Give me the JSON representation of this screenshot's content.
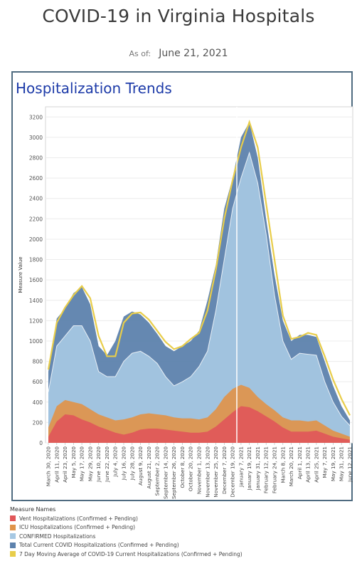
{
  "header": {
    "title": "COVID-19 in Virginia Hospitals",
    "as_of_label": "As of:",
    "as_of_date": "June 21, 2021"
  },
  "panel": {
    "title": "Hospitalization Trends"
  },
  "legend": {
    "title": "Measure Names",
    "items": [
      {
        "label": "Vent Hospitalizations (Confirmed + Pending)",
        "color": "#e15759"
      },
      {
        "label": "ICU Hospitalizations (Confirmed + Pending)",
        "color": "#e0944a"
      },
      {
        "label": "CONFIRMED Hospitalizations",
        "color": "#a6c8e3"
      },
      {
        "label": "Total Current COVID Hospitalizations (Confirmed + Pending)",
        "color": "#5d82ad"
      },
      {
        "label": "7 Day Moving Average of COVID-19 Current Hospitalizations (Confirmed + Pending)",
        "color": "#e8cd4a"
      }
    ]
  },
  "chart_data": {
    "type": "area",
    "ylabel": "Measure Value",
    "xlabel": "",
    "ylim": [
      0,
      3300
    ],
    "yticks": [
      0,
      200,
      400,
      600,
      800,
      1000,
      1200,
      1400,
      1600,
      1800,
      2000,
      2200,
      2400,
      2600,
      2800,
      3000,
      3200
    ],
    "x_tick_labels": [
      "March 30, 2020",
      "April 11, 2020",
      "April 23, 2020",
      "May 5, 2020",
      "May 17, 2020",
      "May 29, 2020",
      "June 10, 2020",
      "June 22, 2020",
      "July 4, 2020",
      "July 16, 2020",
      "July 28, 2020",
      "August 9, 2020",
      "August 21, 2020",
      "September 2, 2020",
      "September 14, 2020",
      "September 26, 2020",
      "October 8, 2020",
      "October 20, 2020",
      "November 1, 2020",
      "November 13, 2020",
      "November 25, 2020",
      "December 7, 2020",
      "December 19, 2020",
      "January 7, 2021",
      "January 19, 2021",
      "January 31, 2021",
      "February 12, 2021",
      "February 24, 2021",
      "March 8, 2021",
      "March 20, 2021",
      "April 1, 2021",
      "April 13, 2021",
      "April 25, 2021",
      "May 7, 2021",
      "May 19, 2021",
      "May 31, 2021",
      "June 12, 2021"
    ],
    "series": [
      {
        "name": "Vent Hospitalizations (Confirmed + Pending)",
        "values": [
          60,
          210,
          280,
          270,
          230,
          200,
          160,
          130,
          100,
          80,
          100,
          130,
          140,
          140,
          130,
          120,
          110,
          100,
          100,
          110,
          160,
          230,
          300,
          360,
          350,
          310,
          260,
          210,
          150,
          110,
          110,
          110,
          120,
          90,
          60,
          45,
          30
        ]
      },
      {
        "name": "ICU Hospitalizations (Confirmed + Pending)",
        "values": [
          150,
          360,
          420,
          400,
          380,
          330,
          280,
          250,
          220,
          230,
          250,
          280,
          290,
          280,
          270,
          250,
          240,
          240,
          230,
          250,
          330,
          450,
          530,
          570,
          540,
          450,
          380,
          320,
          250,
          220,
          220,
          210,
          220,
          170,
          120,
          90,
          60
        ]
      },
      {
        "name": "CONFIRMED Hospitalizations",
        "values": [
          500,
          950,
          1050,
          1150,
          1150,
          1000,
          700,
          650,
          650,
          800,
          880,
          900,
          850,
          780,
          650,
          560,
          600,
          650,
          750,
          900,
          1300,
          1800,
          2300,
          2600,
          2850,
          2550,
          2050,
          1450,
          1000,
          820,
          880,
          870,
          860,
          600,
          400,
          260,
          170
        ]
      },
      {
        "name": "Total Current COVID Hospitalizations (Confirmed + Pending)",
        "values": [
          700,
          1220,
          1320,
          1470,
          1530,
          1360,
          950,
          860,
          1000,
          1240,
          1290,
          1260,
          1180,
          1070,
          950,
          900,
          950,
          1000,
          1100,
          1400,
          1750,
          2300,
          2600,
          3000,
          3150,
          2800,
          2200,
          1650,
          1200,
          1000,
          1060,
          1060,
          1040,
          800,
          560,
          360,
          220
        ]
      },
      {
        "name": "7 Day Moving Average of COVID-19 Current Hospitalizations (Confirmed + Pending)",
        "values": [
          720,
          1180,
          1330,
          1450,
          1540,
          1420,
          1050,
          850,
          850,
          1180,
          1270,
          1280,
          1210,
          1100,
          990,
          920,
          950,
          1020,
          1080,
          1300,
          1700,
          2200,
          2580,
          2900,
          3150,
          2900,
          2350,
          1800,
          1250,
          1020,
          1040,
          1080,
          1060,
          850,
          620,
          430,
          270
        ]
      }
    ]
  }
}
